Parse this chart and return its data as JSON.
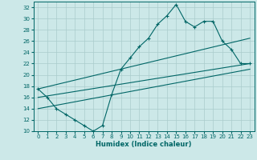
{
  "xlabel": "Humidex (Indice chaleur)",
  "bg_color": "#cce8e8",
  "line_color": "#006666",
  "grid_color": "#aacccc",
  "xlim": [
    -0.5,
    23.5
  ],
  "ylim": [
    10,
    33
  ],
  "xticks": [
    0,
    1,
    2,
    3,
    4,
    5,
    6,
    7,
    8,
    9,
    10,
    11,
    12,
    13,
    14,
    15,
    16,
    17,
    18,
    19,
    20,
    21,
    22,
    23
  ],
  "yticks": [
    10,
    12,
    14,
    16,
    18,
    20,
    22,
    24,
    26,
    28,
    30,
    32
  ],
  "line_main": {
    "x": [
      0,
      1,
      2,
      3,
      4,
      5,
      6,
      7,
      8,
      9,
      10,
      11,
      12,
      13,
      14,
      15,
      16,
      17,
      18,
      19,
      20,
      21,
      22,
      23
    ],
    "y": [
      17.5,
      16,
      14,
      13,
      12,
      11,
      10,
      11,
      16.5,
      21,
      23,
      25,
      26.5,
      29,
      30.5,
      32.5,
      29.5,
      28.5,
      29.5,
      29.5,
      26,
      24.5,
      22,
      22
    ]
  },
  "line_upper": {
    "x": [
      0,
      23
    ],
    "y": [
      17.5,
      26.5
    ]
  },
  "line_mid": {
    "x": [
      0,
      23
    ],
    "y": [
      16,
      22
    ]
  },
  "line_lower": {
    "x": [
      0,
      23
    ],
    "y": [
      14,
      21
    ]
  }
}
